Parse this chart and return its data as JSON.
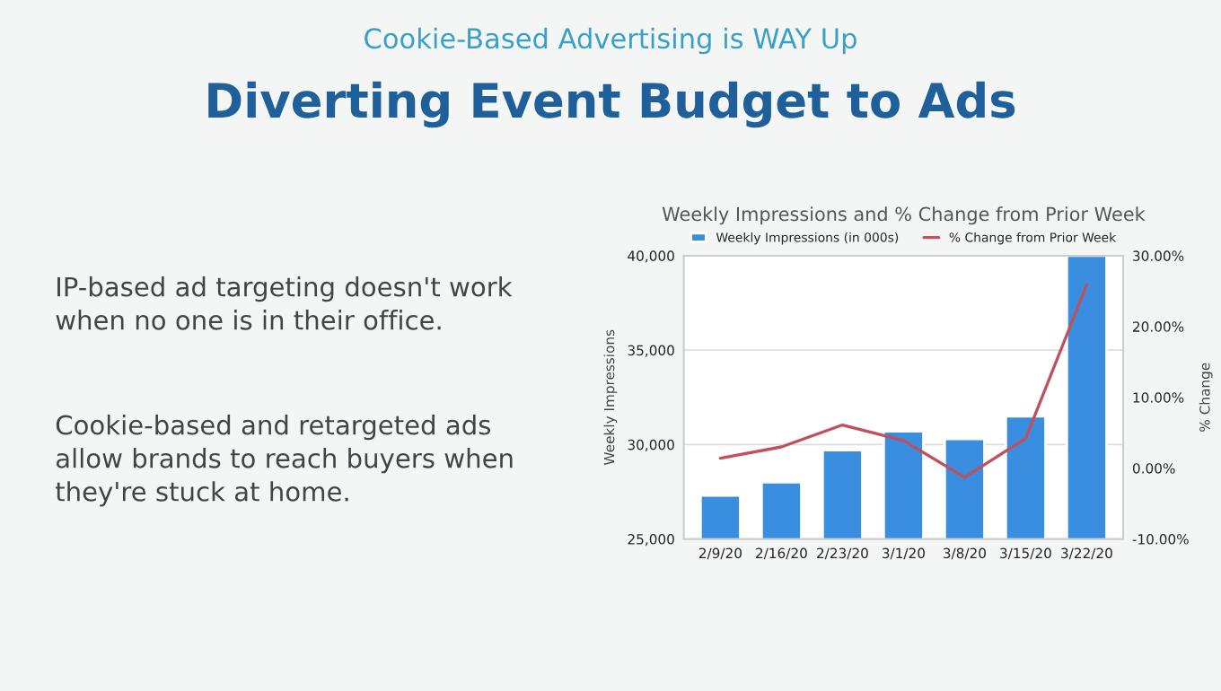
{
  "chart_data": [
    {
      "type": "other",
      "subtitle": "Cookie-Based Advertising is WAY Up",
      "title": "Diverting Event Budget to Ads",
      "annotations": [
        "IP-based ad targeting doesn't work\nwhen no one is in their office.",
        "Cookie-based and retargeted ads\nallow brands to reach buyers when\nthey're stuck at home."
      ]
    },
    {
      "type": "bar",
      "title": "Weekly Impressions and % Change from Prior Week",
      "ylabel": "Weekly Impressions",
      "y2label": "% Change",
      "categories": [
        "2/9/20",
        "2/16/20",
        "2/23/20",
        "3/1/20",
        "3/8/20",
        "3/15/20",
        "3/22/20"
      ],
      "series": [
        {
          "name": "Weekly Impressions (in 000s)",
          "color": "#3a8ee0",
          "values": [
            27300,
            28000,
            29700,
            30700,
            30300,
            31500,
            40000
          ]
        },
        {
          "name": "% Change from Prior Week",
          "type": "line",
          "axis": "y2",
          "color": "#c0505e",
          "values": [
            1.4,
            3.0,
            6.1,
            3.9,
            -1.3,
            4.2,
            25.9
          ]
        }
      ],
      "ylim": [
        25000,
        40000
      ],
      "yticks": [
        {
          "value": 25000,
          "label": "25,000"
        },
        {
          "value": 30000,
          "label": "30,000"
        },
        {
          "value": 35000,
          "label": "35,000"
        },
        {
          "value": 40000,
          "label": "40,000"
        }
      ],
      "y2lim": [
        -10,
        30
      ],
      "y2ticks": [
        {
          "value": -10,
          "label": "-10.00%"
        },
        {
          "value": 0,
          "label": "0.00%"
        },
        {
          "value": 10,
          "label": "10.00%"
        },
        {
          "value": 20,
          "label": "20.00%"
        },
        {
          "value": 30,
          "label": "30.00%"
        }
      ],
      "grid": "y",
      "legend": "top",
      "marker": "none",
      "line_style": "solid"
    }
  ]
}
